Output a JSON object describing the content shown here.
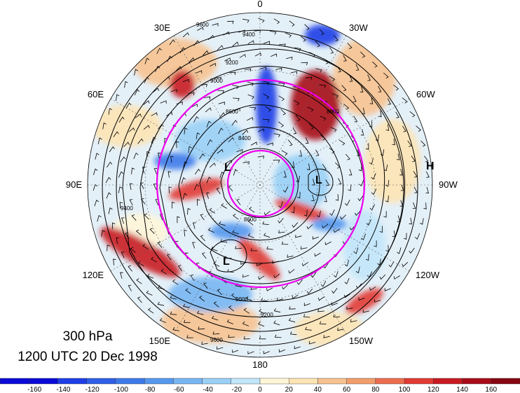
{
  "title": {
    "level": "300 hPa",
    "datetime": "1200 UTC 20 Dec 1998"
  },
  "map": {
    "projection": "north-polar-stereographic",
    "longitude_labels": [
      "0",
      "30W",
      "60W",
      "90W",
      "120W",
      "150W",
      "180",
      "150E",
      "120E",
      "90E",
      "60E",
      "30E"
    ],
    "contour_labels": [
      "9600",
      "9400",
      "9200",
      "9000",
      "8800",
      "8600",
      "8400",
      "9400",
      "9600",
      "9200",
      "9000",
      "8600"
    ],
    "high_low_labels": [
      "L",
      "L",
      "L",
      "H"
    ],
    "colors": {
      "ring": "#ee00ee",
      "contour": "#000000",
      "gridline": "#555555"
    }
  },
  "colorbar": {
    "tick_labels": [
      "-160",
      "-140",
      "-120",
      "-100",
      "-80",
      "-60",
      "-40",
      "-20",
      "0",
      "20",
      "40",
      "60",
      "80",
      "100",
      "120",
      "140",
      "160"
    ],
    "colors": [
      "#0a0ad6",
      "#1e3ee6",
      "#2f5fe8",
      "#3e7aea",
      "#5598ee",
      "#78b6f2",
      "#9ad0f6",
      "#c2e6fa",
      "#fff6d8",
      "#fde4b4",
      "#f7c290",
      "#f29e6c",
      "#ec6e50",
      "#e23a34",
      "#c81a22",
      "#a80c18",
      "#860612"
    ]
  }
}
